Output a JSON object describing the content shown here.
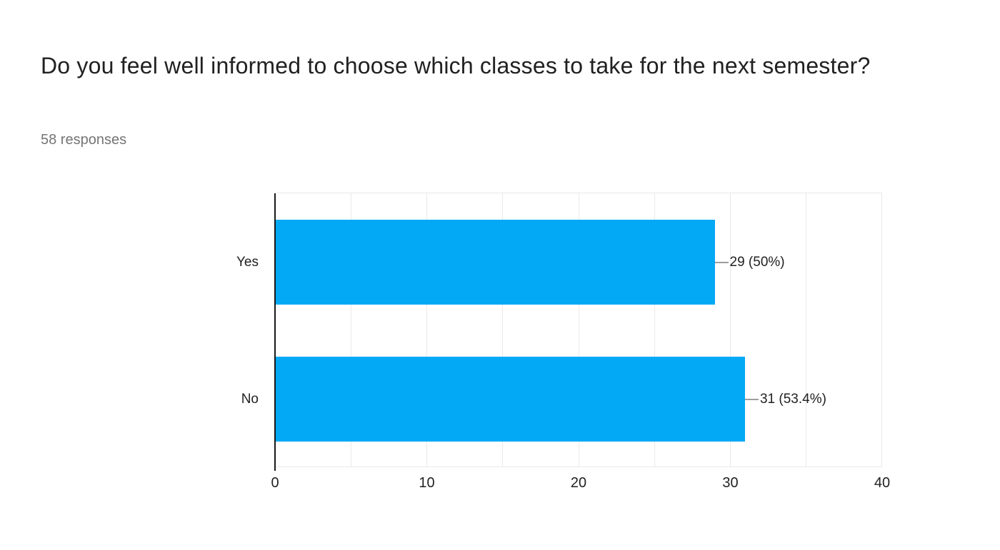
{
  "header": {
    "title": "Do you feel well informed to choose which classes to take for the next semester?",
    "responses_label": "58 responses"
  },
  "chart_data": {
    "type": "bar",
    "orientation": "horizontal",
    "title": "Do you feel well informed to choose which classes to take for the next semester?",
    "subtitle": "58 responses",
    "categories": [
      "Yes",
      "No"
    ],
    "values": [
      29,
      31
    ],
    "value_labels": [
      "29 (50%)",
      "31 (53.4%)"
    ],
    "xlim": [
      0,
      40
    ],
    "x_ticks": [
      0,
      10,
      20,
      30,
      40
    ],
    "minor_gridline_step": 5,
    "grid": true,
    "xlabel": "",
    "ylabel": ""
  },
  "colors": {
    "bar": "#03a9f4",
    "gridline": "#e9e9e9",
    "axis_line": "#1a1a1a",
    "connector": "#9e9e9e",
    "title_text": "#212121",
    "subtitle_text": "#757575",
    "label_text": "#212121"
  }
}
